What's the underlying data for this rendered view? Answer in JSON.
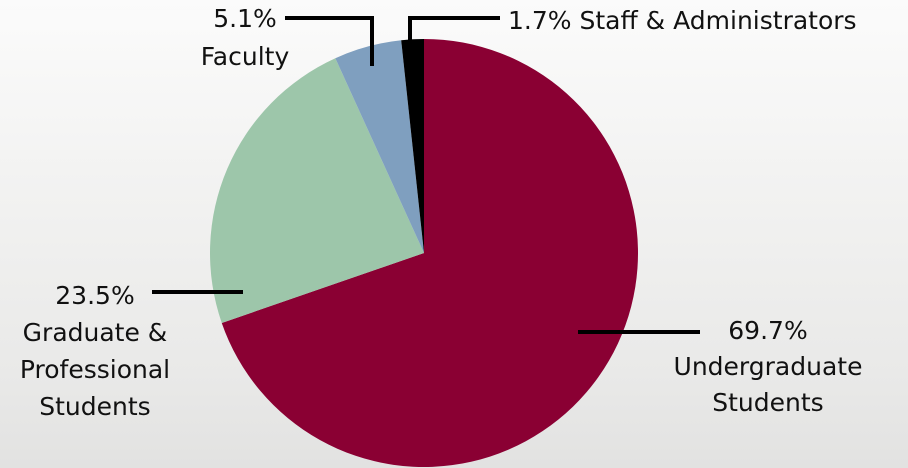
{
  "chart_data": {
    "type": "pie",
    "categories": [
      [
        "Undergraduate",
        "Students"
      ],
      [
        "Graduate &",
        "Professional",
        "Students"
      ],
      [
        "Faculty"
      ],
      [
        "Staff & Administrators"
      ]
    ],
    "values": [
      69.7,
      23.5,
      5.1,
      1.7
    ],
    "value_labels": [
      "69.7%",
      "23.5%",
      "5.1%",
      "1.7%"
    ],
    "colors": [
      "#8a0033",
      "#9dc6aa",
      "#7f9fbf",
      "#000000"
    ]
  }
}
